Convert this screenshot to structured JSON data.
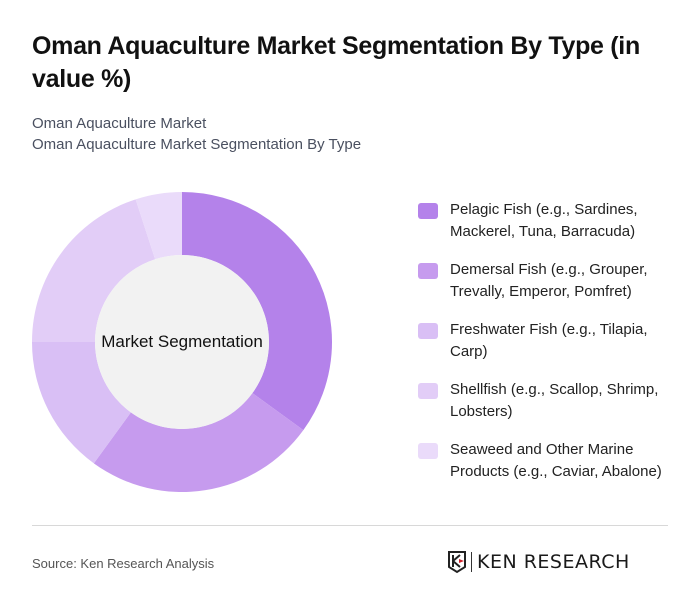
{
  "header": {
    "title": "Oman Aquaculture Market Segmentation By Type (in value %)",
    "subtitle_line1": "Oman Aquaculture Market",
    "subtitle_line2": "Oman Aquaculture Market Segmentation By Type"
  },
  "chart": {
    "center_label": "Market Segmentation"
  },
  "legend": [
    {
      "label": "Pelagic Fish (e.g., Sardines, Mackerel, Tuna, Barracuda)",
      "color": "#b482ea"
    },
    {
      "label": "Demersal Fish (e.g., Grouper, Trevally, Emperor, Pomfret)",
      "color": "#c69bee"
    },
    {
      "label": "Freshwater Fish (e.g., Tilapia, Carp)",
      "color": "#d9bff5"
    },
    {
      "label": "Shellfish (e.g., Scallop, Shrimp, Lobsters)",
      "color": "#e2cdf7"
    },
    {
      "label": "Seaweed and Other Marine Products (e.g., Caviar, Abalone)",
      "color": "#eadbfa"
    }
  ],
  "footer": {
    "source": "Source: Ken Research Analysis",
    "logo_text": "KEN RESEARCH"
  },
  "chart_data": {
    "type": "pie",
    "subtype": "donut",
    "title": "Oman Aquaculture Market Segmentation By Type (in value %)",
    "center_label": "Market Segmentation",
    "categories": [
      "Pelagic Fish (e.g., Sardines, Mackerel, Tuna, Barracuda)",
      "Demersal Fish (e.g., Grouper, Trevally, Emperor, Pomfret)",
      "Freshwater Fish (e.g., Tilapia, Carp)",
      "Shellfish (e.g., Scallop, Shrimp, Lobsters)",
      "Seaweed and Other Marine Products (e.g., Caviar, Abalone)"
    ],
    "values": [
      35,
      25,
      15,
      20,
      5
    ],
    "colors": [
      "#b482ea",
      "#c69bee",
      "#d9bff5",
      "#e2cdf7",
      "#eadbfa"
    ],
    "legend_position": "right"
  }
}
